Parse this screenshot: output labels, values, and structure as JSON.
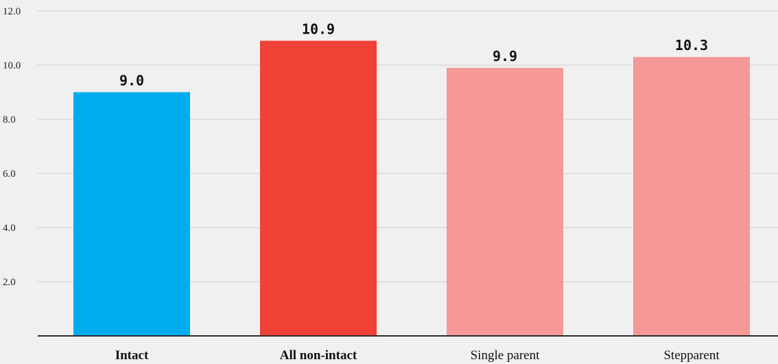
{
  "chart_data": {
    "type": "bar",
    "categories": [
      "Intact",
      "All non-intact",
      "Single parent",
      "Stepparent"
    ],
    "values": [
      9.0,
      10.9,
      9.9,
      10.3
    ],
    "value_labels": [
      "9.0",
      "10.9",
      "9.9",
      "10.3"
    ],
    "bold_categories": [
      "Intact",
      "All non-intact"
    ],
    "colors": [
      "#00adef",
      "#ef4136",
      "#f59896",
      "#f59896"
    ],
    "y_ticks": [
      2.0,
      4.0,
      6.0,
      8.0,
      10.0,
      12.0
    ],
    "y_tick_labels": [
      "2.0",
      "4.0",
      "6.0",
      "8.0",
      "10.0",
      "12.0"
    ],
    "ylim": [
      0,
      12
    ],
    "grid": true,
    "title": "",
    "xlabel": "",
    "ylabel": ""
  }
}
